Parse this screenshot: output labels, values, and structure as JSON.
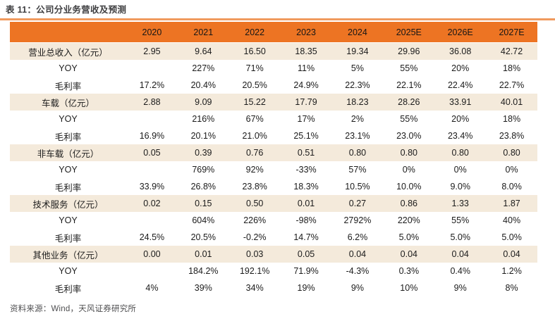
{
  "page": {
    "title": "表 11：公司分业务营收及预测",
    "source_note": "资料来源：Wind，天风证券研究所"
  },
  "colors": {
    "header_bg": "#ED7423",
    "band_row_bg": "#F4EADB",
    "title_rule": "#F09A5E",
    "header_text": "#161616",
    "body_text": "#1B1B1B",
    "title_text": "#3F3F41",
    "source_text": "#4E4E50"
  },
  "chart_data": {
    "type": "table",
    "title": "公司分业务营收及预测",
    "corner_label": "",
    "columns": [
      "2020",
      "2021",
      "2022",
      "2023",
      "2024",
      "2025E",
      "2026E",
      "2027E"
    ],
    "rows": [
      {
        "label": "营业总收入（亿元）",
        "band": true,
        "values": [
          "2.95",
          "9.64",
          "16.50",
          "18.35",
          "19.34",
          "29.96",
          "36.08",
          "42.72"
        ]
      },
      {
        "label": "YOY",
        "band": false,
        "values": [
          "",
          "227%",
          "71%",
          "11%",
          "5%",
          "55%",
          "20%",
          "18%"
        ]
      },
      {
        "label": "毛利率",
        "band": false,
        "values": [
          "17.2%",
          "20.4%",
          "20.5%",
          "24.9%",
          "22.3%",
          "22.1%",
          "22.4%",
          "22.7%"
        ]
      },
      {
        "label": "车载（亿元）",
        "band": true,
        "values": [
          "2.88",
          "9.09",
          "15.22",
          "17.79",
          "18.23",
          "28.26",
          "33.91",
          "40.01"
        ]
      },
      {
        "label": "YOY",
        "band": false,
        "values": [
          "",
          "216%",
          "67%",
          "17%",
          "2%",
          "55%",
          "20%",
          "18%"
        ]
      },
      {
        "label": "毛利率",
        "band": false,
        "values": [
          "16.9%",
          "20.1%",
          "21.0%",
          "25.1%",
          "23.1%",
          "23.0%",
          "23.4%",
          "23.8%"
        ]
      },
      {
        "label": "非车载（亿元）",
        "band": true,
        "values": [
          "0.05",
          "0.39",
          "0.76",
          "0.51",
          "0.80",
          "0.80",
          "0.80",
          "0.80"
        ]
      },
      {
        "label": "YOY",
        "band": false,
        "values": [
          "",
          "769%",
          "92%",
          "-33%",
          "57%",
          "0%",
          "0%",
          "0%"
        ]
      },
      {
        "label": "毛利率",
        "band": false,
        "values": [
          "33.9%",
          "26.8%",
          "23.8%",
          "18.3%",
          "10.5%",
          "10.0%",
          "9.0%",
          "8.0%"
        ]
      },
      {
        "label": "技术服务（亿元）",
        "band": true,
        "values": [
          "0.02",
          "0.15",
          "0.50",
          "0.01",
          "0.27",
          "0.86",
          "1.33",
          "1.87"
        ]
      },
      {
        "label": "YOY",
        "band": false,
        "values": [
          "",
          "604%",
          "226%",
          "-98%",
          "2792%",
          "220%",
          "55%",
          "40%"
        ]
      },
      {
        "label": "毛利率",
        "band": false,
        "values": [
          "24.5%",
          "20.5%",
          "-0.2%",
          "14.7%",
          "6.2%",
          "5.0%",
          "5.0%",
          "5.0%"
        ]
      },
      {
        "label": "其他业务（亿元）",
        "band": true,
        "values": [
          "0.00",
          "0.01",
          "0.03",
          "0.05",
          "0.04",
          "0.04",
          "0.04",
          "0.04"
        ]
      },
      {
        "label": "YOY",
        "band": false,
        "values": [
          "",
          "184.2%",
          "192.1%",
          "71.9%",
          "-4.3%",
          "0.3%",
          "0.4%",
          "1.2%"
        ]
      },
      {
        "label": "毛利率",
        "band": false,
        "values": [
          "4%",
          "39%",
          "34%",
          "19%",
          "9%",
          "10%",
          "9%",
          "8%"
        ]
      }
    ]
  }
}
